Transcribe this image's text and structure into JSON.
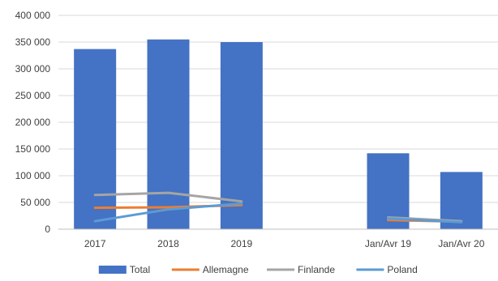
{
  "chart_data": {
    "type": "bar",
    "categories": [
      "2017",
      "2018",
      "2019",
      "",
      "Jan/Avr 19",
      "Jan/Avr 20"
    ],
    "ylim": [
      0,
      400000
    ],
    "yticks": [
      0,
      50000,
      100000,
      150000,
      200000,
      250000,
      300000,
      350000,
      400000
    ],
    "ytick_labels": [
      "0",
      "50 000",
      "100 000",
      "150 000",
      "200 000",
      "250 000",
      "300 000",
      "350 000",
      "400 000"
    ],
    "grid": true,
    "legend_position": "bottom",
    "series": [
      {
        "name": "Total",
        "kind": "bar",
        "color": "#4472C4",
        "values": [
          337000,
          355000,
          350000,
          null,
          142000,
          107000
        ]
      },
      {
        "name": "Allemagne",
        "kind": "line",
        "color": "#ED7D31",
        "values": [
          40000,
          41000,
          45000,
          null,
          17000,
          14000
        ]
      },
      {
        "name": "Finlande",
        "kind": "line",
        "color": "#A5A5A5",
        "values": [
          64000,
          68000,
          52000,
          null,
          22000,
          15000
        ]
      },
      {
        "name": "Poland",
        "kind": "line",
        "color": "#5B9BD5",
        "values": [
          15000,
          37000,
          48000,
          null,
          20000,
          13000
        ]
      }
    ]
  }
}
